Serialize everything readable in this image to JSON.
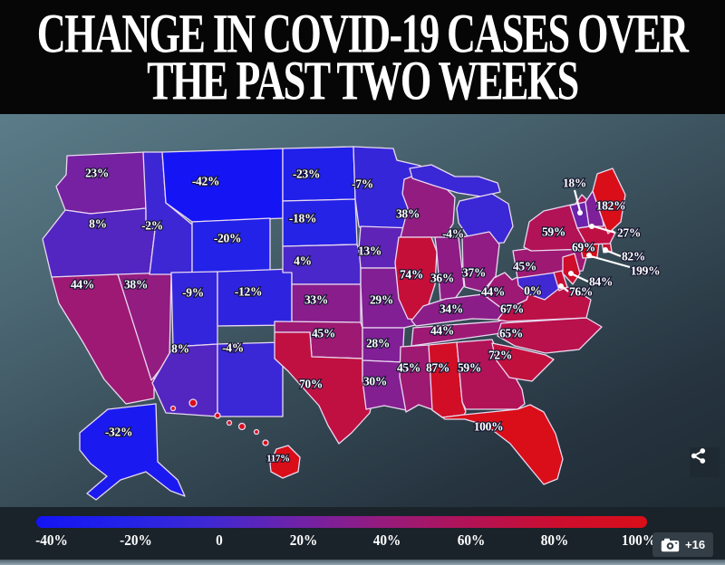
{
  "header": {
    "lines": [
      "CHANGE IN COVID-19 CASES OVER",
      "THE PAST TWO WEEKS"
    ],
    "background": "#060606",
    "text_color": "#ffffff"
  },
  "chart_data": {
    "type": "heatmap",
    "subtype": "us-state-choropleth",
    "title": "Change in COVID-19 cases over the past two weeks",
    "value_unit": "percent change in cases",
    "legend": {
      "position": "bottom",
      "orientation": "horizontal",
      "tick_labels": [
        "-40%",
        "-20%",
        "0",
        "20%",
        "40%",
        "60%",
        "80%",
        "100%"
      ],
      "tick_values": [
        -40,
        -20,
        0,
        20,
        40,
        60,
        80,
        100
      ],
      "stop_colors": [
        "#1414f5",
        "#2222e8",
        "#4028d2",
        "#7022a8",
        "#971b7c",
        "#b31254",
        "#cc0e2e",
        "#d90e18"
      ]
    },
    "states": [
      {
        "abbr": "WA",
        "name": "Washington",
        "label": "23%",
        "value": 23
      },
      {
        "abbr": "OR",
        "name": "Oregon",
        "label": "8%",
        "value": 8
      },
      {
        "abbr": "CA",
        "name": "California",
        "label": "44%",
        "value": 44
      },
      {
        "abbr": "NV",
        "name": "Nevada",
        "label": "38%",
        "value": 38
      },
      {
        "abbr": "ID",
        "name": "Idaho",
        "label": "-2%",
        "value": -2
      },
      {
        "abbr": "MT",
        "name": "Montana",
        "label": "-42%",
        "value": -42
      },
      {
        "abbr": "WY",
        "name": "Wyoming",
        "label": "-20%",
        "value": -20
      },
      {
        "abbr": "UT",
        "name": "Utah",
        "label": "-9%",
        "value": -9
      },
      {
        "abbr": "CO",
        "name": "Colorado",
        "label": "-12%",
        "value": -12
      },
      {
        "abbr": "AZ",
        "name": "Arizona",
        "label": "8%",
        "value": 8
      },
      {
        "abbr": "NM",
        "name": "New Mexico",
        "label": "-4%",
        "value": -4
      },
      {
        "abbr": "ND",
        "name": "North Dakota",
        "label": "-23%",
        "value": -23
      },
      {
        "abbr": "SD",
        "name": "South Dakota",
        "label": "-18%",
        "value": -18
      },
      {
        "abbr": "NE",
        "name": "Nebraska",
        "label": "4%",
        "value": 4
      },
      {
        "abbr": "KS",
        "name": "Kansas",
        "label": "33%",
        "value": 33
      },
      {
        "abbr": "OK",
        "name": "Oklahoma",
        "label": "45%",
        "value": 45
      },
      {
        "abbr": "TX",
        "name": "Texas",
        "label": "70%",
        "value": 70
      },
      {
        "abbr": "MN",
        "name": "Minnesota",
        "label": "-7%",
        "value": -7
      },
      {
        "abbr": "IA",
        "name": "Iowa",
        "label": "13%",
        "value": 13
      },
      {
        "abbr": "MO",
        "name": "Missouri",
        "label": "29%",
        "value": 29
      },
      {
        "abbr": "AR",
        "name": "Arkansas",
        "label": "28%",
        "value": 28
      },
      {
        "abbr": "LA",
        "name": "Louisiana",
        "label": "30%",
        "value": 30
      },
      {
        "abbr": "WI",
        "name": "Wisconsin",
        "label": "38%",
        "value": 38
      },
      {
        "abbr": "MI",
        "name": "Michigan",
        "label": "-4%",
        "value": -4
      },
      {
        "abbr": "IL",
        "name": "Illinois",
        "label": "74%",
        "value": 74
      },
      {
        "abbr": "IN",
        "name": "Indiana",
        "label": "36%",
        "value": 36
      },
      {
        "abbr": "OH",
        "name": "Ohio",
        "label": "37%",
        "value": 37
      },
      {
        "abbr": "KY",
        "name": "Kentucky",
        "label": "34%",
        "value": 34
      },
      {
        "abbr": "TN",
        "name": "Tennessee",
        "label": "44%",
        "value": 44
      },
      {
        "abbr": "MS",
        "name": "Mississippi",
        "label": "45%",
        "value": 45
      },
      {
        "abbr": "AL",
        "name": "Alabama",
        "label": "87%",
        "value": 87
      },
      {
        "abbr": "GA",
        "name": "Georgia",
        "label": "59%",
        "value": 59
      },
      {
        "abbr": "FL",
        "name": "Florida",
        "label": "100%",
        "value": 100
      },
      {
        "abbr": "SC",
        "name": "South Carolina",
        "label": "72%",
        "value": 72
      },
      {
        "abbr": "NC",
        "name": "North Carolina",
        "label": "65%",
        "value": 65
      },
      {
        "abbr": "VA",
        "name": "Virginia",
        "label": "67%",
        "value": 67
      },
      {
        "abbr": "WV",
        "name": "West Virginia",
        "label": "44%",
        "value": 44
      },
      {
        "abbr": "PA",
        "name": "Pennsylvania",
        "label": "45%",
        "value": 45
      },
      {
        "abbr": "NY",
        "name": "New York",
        "label": "59%",
        "value": 59
      },
      {
        "abbr": "MD",
        "name": "Maryland",
        "label": "0%",
        "value": 0
      },
      {
        "abbr": "DE",
        "name": "Delaware",
        "label": "76%",
        "value": 76,
        "callout": true
      },
      {
        "abbr": "NJ",
        "name": "New Jersey",
        "label": "84%",
        "value": 84,
        "callout": true
      },
      {
        "abbr": "CT",
        "name": "Connecticut",
        "label": "199%",
        "value": 199,
        "callout": true
      },
      {
        "abbr": "RI",
        "name": "Rhode Island",
        "label": "82%",
        "value": 82,
        "callout": true
      },
      {
        "abbr": "MA",
        "name": "Massachusetts",
        "label": "69%",
        "value": 69
      },
      {
        "abbr": "VT",
        "name": "Vermont",
        "label": "18%",
        "value": 18,
        "callout": true
      },
      {
        "abbr": "NH",
        "name": "New Hampshire",
        "label": "27%",
        "value": 27,
        "callout": true
      },
      {
        "abbr": "ME",
        "name": "Maine",
        "label": "182%",
        "value": 182
      },
      {
        "abbr": "AK",
        "name": "Alaska",
        "label": "-32%",
        "value": -32
      },
      {
        "abbr": "HI",
        "name": "Hawaii",
        "label": "117%",
        "value": 117
      }
    ]
  },
  "overlay": {
    "photo_count": "+16"
  }
}
